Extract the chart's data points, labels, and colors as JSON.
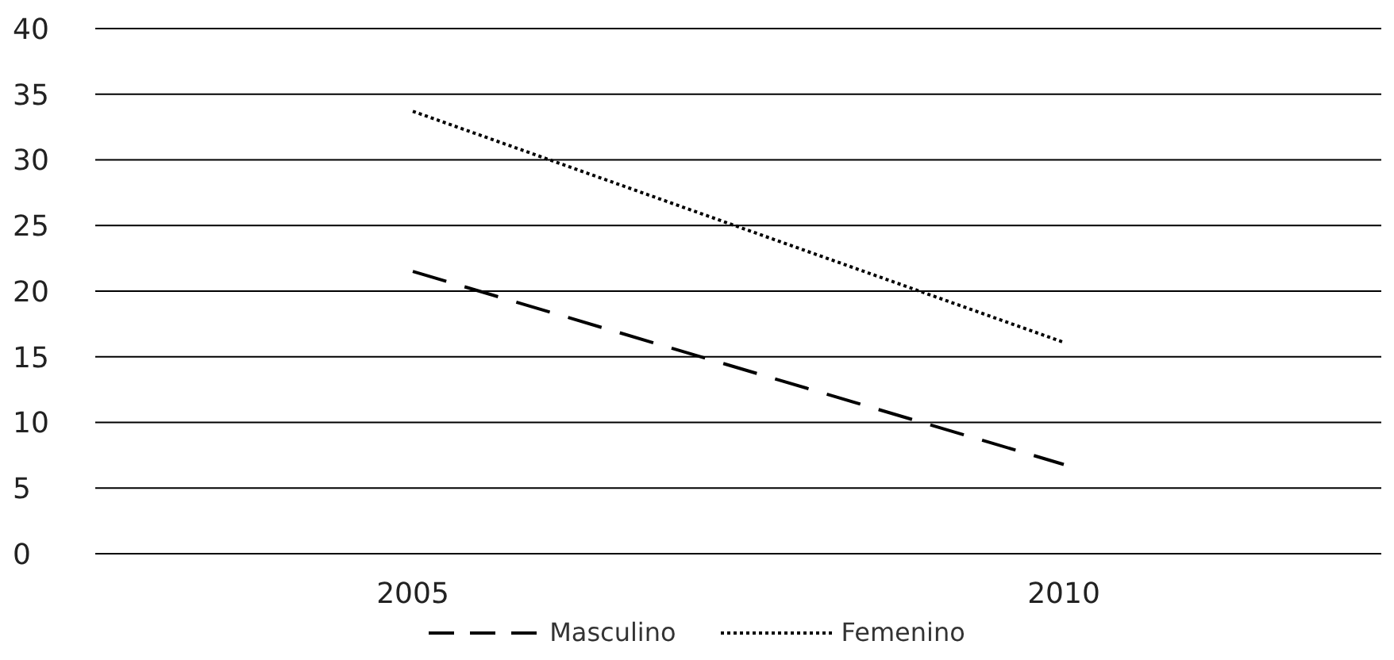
{
  "chart_data": {
    "type": "line",
    "categories": [
      "2005",
      "2010"
    ],
    "series": [
      {
        "name": "Masculino",
        "color": "#000000",
        "line_style": "dashed",
        "values": [
          21.5,
          6.8
        ]
      },
      {
        "name": "Femenino",
        "color": "#000000",
        "line_style": "dotted",
        "values": [
          33.7,
          16.1
        ]
      }
    ],
    "ylim": [
      0,
      40
    ],
    "yticks": [
      0,
      5,
      10,
      15,
      20,
      25,
      30,
      35,
      40
    ],
    "grid": "y",
    "legend": "bottom",
    "marker": "none"
  }
}
